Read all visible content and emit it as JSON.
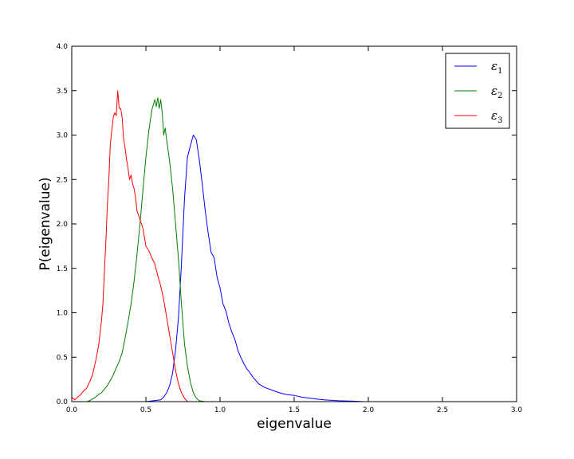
{
  "chart_data": {
    "type": "line",
    "title": "",
    "xlabel": "eigenvalue",
    "ylabel": "P(eigenvalue)",
    "xlim": [
      0.0,
      3.0
    ],
    "ylim": [
      0.0,
      4.0
    ],
    "x_ticks": [
      "0.0",
      "0.5",
      "1.0",
      "1.5",
      "2.0",
      "2.5",
      "3.0"
    ],
    "y_ticks": [
      "0.0",
      "0.5",
      "1.0",
      "1.5",
      "2.0",
      "2.5",
      "3.0",
      "3.5",
      "4.0"
    ],
    "grid": false,
    "legend_position": "top-right",
    "series": [
      {
        "name": "ε1",
        "legend_symbol": "ε",
        "legend_subscript": "1",
        "color": "#0000ff",
        "x": [
          0.5,
          0.55,
          0.6,
          0.62,
          0.64,
          0.66,
          0.68,
          0.7,
          0.72,
          0.74,
          0.76,
          0.78,
          0.8,
          0.82,
          0.84,
          0.86,
          0.88,
          0.9,
          0.92,
          0.94,
          0.96,
          0.98,
          1.0,
          1.02,
          1.04,
          1.06,
          1.08,
          1.1,
          1.12,
          1.14,
          1.16,
          1.18,
          1.2,
          1.22,
          1.24,
          1.26,
          1.3,
          1.35,
          1.4,
          1.45,
          1.5,
          1.55,
          1.6,
          1.65,
          1.7,
          1.8,
          1.9,
          1.97
        ],
        "values": [
          0.0,
          0.01,
          0.02,
          0.05,
          0.1,
          0.18,
          0.32,
          0.58,
          0.95,
          1.55,
          2.28,
          2.75,
          2.88,
          3.0,
          2.95,
          2.72,
          2.45,
          2.15,
          1.9,
          1.68,
          1.62,
          1.4,
          1.28,
          1.1,
          1.02,
          0.88,
          0.78,
          0.7,
          0.58,
          0.5,
          0.43,
          0.37,
          0.33,
          0.28,
          0.24,
          0.2,
          0.16,
          0.13,
          0.1,
          0.08,
          0.07,
          0.05,
          0.04,
          0.03,
          0.02,
          0.01,
          0.005,
          0.0
        ]
      },
      {
        "name": "ε2",
        "legend_symbol": "ε",
        "legend_subscript": "2",
        "color": "#008000",
        "x": [
          0.0,
          0.1,
          0.12,
          0.14,
          0.16,
          0.18,
          0.2,
          0.22,
          0.24,
          0.26,
          0.28,
          0.3,
          0.32,
          0.34,
          0.36,
          0.38,
          0.4,
          0.42,
          0.44,
          0.46,
          0.48,
          0.5,
          0.52,
          0.54,
          0.56,
          0.57,
          0.58,
          0.59,
          0.6,
          0.61,
          0.62,
          0.63,
          0.64,
          0.66,
          0.68,
          0.7,
          0.72,
          0.74,
          0.76,
          0.78,
          0.8,
          0.82,
          0.84,
          0.86,
          0.9
        ],
        "values": [
          0.0,
          0.0,
          0.01,
          0.03,
          0.05,
          0.08,
          0.1,
          0.14,
          0.18,
          0.24,
          0.3,
          0.38,
          0.45,
          0.55,
          0.72,
          0.9,
          1.1,
          1.35,
          1.65,
          2.0,
          2.38,
          2.75,
          3.05,
          3.28,
          3.4,
          3.32,
          3.42,
          3.3,
          3.4,
          3.25,
          3.0,
          3.08,
          2.95,
          2.7,
          2.4,
          2.0,
          1.6,
          1.1,
          0.65,
          0.4,
          0.22,
          0.1,
          0.04,
          0.01,
          0.0
        ]
      },
      {
        "name": "ε3",
        "legend_symbol": "ε",
        "legend_subscript": "3",
        "color": "#ff0000",
        "x": [
          0.0,
          0.02,
          0.04,
          0.06,
          0.08,
          0.1,
          0.12,
          0.14,
          0.16,
          0.18,
          0.2,
          0.21,
          0.22,
          0.23,
          0.24,
          0.25,
          0.26,
          0.27,
          0.28,
          0.29,
          0.3,
          0.31,
          0.32,
          0.33,
          0.34,
          0.35,
          0.36,
          0.37,
          0.38,
          0.39,
          0.4,
          0.41,
          0.42,
          0.43,
          0.44,
          0.46,
          0.48,
          0.5,
          0.52,
          0.54,
          0.56,
          0.58,
          0.6,
          0.62,
          0.64,
          0.66,
          0.68,
          0.7,
          0.72,
          0.74,
          0.76,
          0.78
        ],
        "values": [
          0.05,
          0.02,
          0.05,
          0.08,
          0.12,
          0.15,
          0.22,
          0.3,
          0.45,
          0.62,
          0.9,
          1.1,
          1.45,
          1.8,
          2.2,
          2.5,
          2.9,
          3.05,
          3.2,
          3.25,
          3.22,
          3.5,
          3.3,
          3.3,
          3.2,
          2.95,
          2.85,
          2.72,
          2.62,
          2.5,
          2.55,
          2.45,
          2.4,
          2.3,
          2.15,
          2.05,
          1.95,
          1.75,
          1.7,
          1.62,
          1.55,
          1.42,
          1.3,
          1.15,
          0.95,
          0.75,
          0.55,
          0.35,
          0.2,
          0.1,
          0.04,
          0.0
        ]
      }
    ]
  }
}
